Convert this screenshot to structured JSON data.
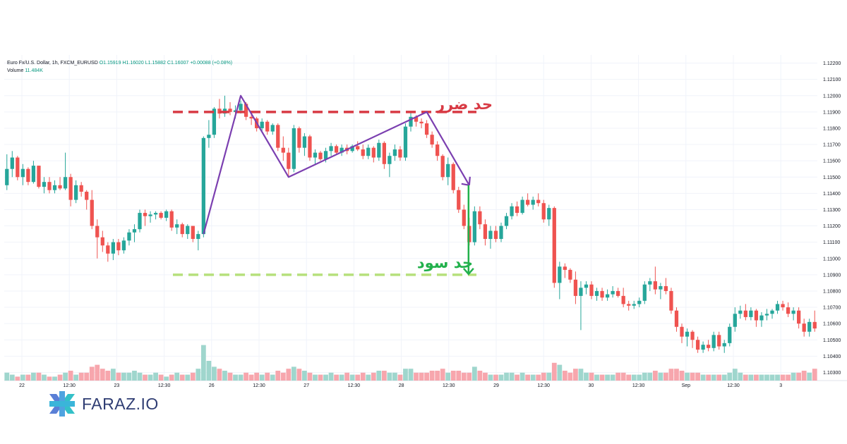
{
  "chart_data": {
    "type": "candlestick",
    "title": "Euro Fx/U.S. Dollar, 1h, FXCM_EURUSD",
    "legend_ohlc": {
      "open": "O1.15919",
      "high": "H1.16020",
      "low": "L1.15882",
      "close": "C1.16007",
      "change": "+0.00088 (+0.08%)"
    },
    "volume_label": "Volume",
    "volume_value": "11.484K",
    "y_ticks": [
      "1.12200",
      "1.12100",
      "1.12000",
      "1.11900",
      "1.11800",
      "1.11700",
      "1.11600",
      "1.11500",
      "1.11400",
      "1.11300",
      "1.11200",
      "1.11100",
      "1.11000",
      "1.10900",
      "1.10800",
      "1.10700",
      "1.10600",
      "1.10500",
      "1.10400",
      "1.10300"
    ],
    "y_range": [
      1.1025,
      1.1225
    ],
    "x_labels": [
      "22",
      "12:30",
      "23",
      "12:30",
      "26",
      "12:30",
      "27",
      "12:30",
      "28",
      "12:30",
      "29",
      "12:30",
      "30",
      "12:30",
      "Sep",
      "12:30",
      "3"
    ],
    "bars": [
      [
        1.1145,
        1.1164,
        1.1142,
        1.1155,
        4
      ],
      [
        1.1155,
        1.1166,
        1.115,
        1.1162,
        3
      ],
      [
        1.1162,
        1.1163,
        1.1148,
        1.115,
        2
      ],
      [
        1.115,
        1.1158,
        1.1145,
        1.1155,
        3
      ],
      [
        1.1155,
        1.1156,
        1.1145,
        1.1147,
        3
      ],
      [
        1.1147,
        1.116,
        1.1146,
        1.1157,
        4
      ],
      [
        1.1157,
        1.1157,
        1.1143,
        1.1144,
        4
      ],
      [
        1.1144,
        1.115,
        1.114,
        1.1147,
        3
      ],
      [
        1.1147,
        1.115,
        1.114,
        1.1142,
        2
      ],
      [
        1.1142,
        1.1148,
        1.114,
        1.1145,
        2
      ],
      [
        1.1145,
        1.115,
        1.1142,
        1.1143,
        3
      ],
      [
        1.1143,
        1.1165,
        1.1142,
        1.115,
        4
      ],
      [
        1.115,
        1.1152,
        1.1132,
        1.1136,
        5
      ],
      [
        1.1136,
        1.1148,
        1.1134,
        1.1145,
        3
      ],
      [
        1.1145,
        1.1147,
        1.1138,
        1.1141,
        4
      ],
      [
        1.1141,
        1.1142,
        1.113,
        1.1136,
        4
      ],
      [
        1.1136,
        1.1142,
        1.1118,
        1.112,
        7
      ],
      [
        1.112,
        1.1124,
        1.11,
        1.1113,
        8
      ],
      [
        1.1113,
        1.1117,
        1.1104,
        1.1108,
        6
      ],
      [
        1.1108,
        1.111,
        1.1098,
        1.1103,
        5
      ],
      [
        1.1103,
        1.1112,
        1.1099,
        1.111,
        6
      ],
      [
        1.111,
        1.1112,
        1.1102,
        1.1105,
        4
      ],
      [
        1.1105,
        1.1113,
        1.1103,
        1.1111,
        4
      ],
      [
        1.1111,
        1.1118,
        1.1108,
        1.1116,
        4
      ],
      [
        1.1116,
        1.1121,
        1.111,
        1.1118,
        5
      ],
      [
        1.1118,
        1.113,
        1.1116,
        1.1128,
        4
      ],
      [
        1.1128,
        1.113,
        1.112,
        1.1126,
        3
      ],
      [
        1.1126,
        1.1129,
        1.1122,
        1.1127,
        3
      ],
      [
        1.1127,
        1.1129,
        1.1124,
        1.1128,
        4
      ],
      [
        1.1128,
        1.1129,
        1.1124,
        1.1125,
        3
      ],
      [
        1.1125,
        1.113,
        1.1123,
        1.1129,
        2
      ],
      [
        1.1129,
        1.113,
        1.1117,
        1.1119,
        3
      ],
      [
        1.1119,
        1.1124,
        1.1115,
        1.1121,
        4
      ],
      [
        1.1121,
        1.1122,
        1.1113,
        1.1115,
        3
      ],
      [
        1.1115,
        1.1121,
        1.1112,
        1.112,
        3
      ],
      [
        1.112,
        1.112,
        1.111,
        1.1112,
        4
      ],
      [
        1.1112,
        1.1117,
        1.1105,
        1.1115,
        6
      ],
      [
        1.1115,
        1.1175,
        1.1113,
        1.1174,
        18
      ],
      [
        1.1174,
        1.1185,
        1.1168,
        1.1176,
        10
      ],
      [
        1.1176,
        1.1193,
        1.1174,
        1.1192,
        7
      ],
      [
        1.1192,
        1.1198,
        1.1186,
        1.1189,
        6
      ],
      [
        1.1189,
        1.12,
        1.1187,
        1.1192,
        5
      ],
      [
        1.1192,
        1.1196,
        1.1188,
        1.119,
        4
      ],
      [
        1.119,
        1.1194,
        1.1186,
        1.1191,
        3
      ],
      [
        1.1191,
        1.1197,
        1.1189,
        1.1195,
        3
      ],
      [
        1.1195,
        1.1196,
        1.1185,
        1.1187,
        4
      ],
      [
        1.1187,
        1.119,
        1.1182,
        1.1186,
        3
      ],
      [
        1.1186,
        1.1187,
        1.1178,
        1.118,
        4
      ],
      [
        1.118,
        1.1186,
        1.1178,
        1.1184,
        3
      ],
      [
        1.1184,
        1.1185,
        1.1176,
        1.1178,
        4
      ],
      [
        1.1178,
        1.1183,
        1.1176,
        1.1182,
        3
      ],
      [
        1.1182,
        1.1183,
        1.1166,
        1.1168,
        5
      ],
      [
        1.1168,
        1.1175,
        1.116,
        1.1165,
        4
      ],
      [
        1.1165,
        1.1168,
        1.115,
        1.1155,
        6
      ],
      [
        1.1155,
        1.1182,
        1.1153,
        1.118,
        7
      ],
      [
        1.118,
        1.1181,
        1.1165,
        1.1168,
        6
      ],
      [
        1.1168,
        1.1177,
        1.1163,
        1.1175,
        5
      ],
      [
        1.1175,
        1.1176,
        1.116,
        1.1162,
        4
      ],
      [
        1.1162,
        1.1167,
        1.1158,
        1.1165,
        3
      ],
      [
        1.1165,
        1.1166,
        1.116,
        1.1161,
        3
      ],
      [
        1.1161,
        1.1168,
        1.1159,
        1.1166,
        3
      ],
      [
        1.1166,
        1.1171,
        1.1163,
        1.1169,
        4
      ],
      [
        1.1169,
        1.117,
        1.1164,
        1.1165,
        3
      ],
      [
        1.1165,
        1.117,
        1.1163,
        1.1168,
        3
      ],
      [
        1.1168,
        1.117,
        1.1164,
        1.1166,
        4
      ],
      [
        1.1166,
        1.117,
        1.1165,
        1.1169,
        3
      ],
      [
        1.1169,
        1.1172,
        1.1166,
        1.1167,
        3
      ],
      [
        1.1167,
        1.117,
        1.1161,
        1.1163,
        4
      ],
      [
        1.1163,
        1.117,
        1.1161,
        1.1168,
        3
      ],
      [
        1.1168,
        1.1169,
        1.1159,
        1.1162,
        4
      ],
      [
        1.1162,
        1.1173,
        1.116,
        1.1171,
        5
      ],
      [
        1.1171,
        1.1172,
        1.1155,
        1.1158,
        5
      ],
      [
        1.1158,
        1.1165,
        1.115,
        1.1163,
        4
      ],
      [
        1.1163,
        1.117,
        1.116,
        1.1167,
        4
      ],
      [
        1.1167,
        1.1169,
        1.116,
        1.1162,
        3
      ],
      [
        1.1162,
        1.1183,
        1.116,
        1.1181,
        6
      ],
      [
        1.1181,
        1.119,
        1.1178,
        1.1187,
        6
      ],
      [
        1.1187,
        1.1188,
        1.1181,
        1.1184,
        4
      ],
      [
        1.1184,
        1.1186,
        1.118,
        1.1183,
        4
      ],
      [
        1.1183,
        1.1185,
        1.1174,
        1.1176,
        4
      ],
      [
        1.1176,
        1.1178,
        1.1168,
        1.117,
        5
      ],
      [
        1.117,
        1.1172,
        1.116,
        1.1163,
        5
      ],
      [
        1.1163,
        1.1164,
        1.1148,
        1.115,
        6
      ],
      [
        1.115,
        1.1162,
        1.1145,
        1.1158,
        4
      ],
      [
        1.1158,
        1.1159,
        1.114,
        1.1142,
        5
      ],
      [
        1.1142,
        1.1144,
        1.1128,
        1.113,
        5
      ],
      [
        1.113,
        1.1133,
        1.1118,
        1.112,
        4
      ],
      [
        1.112,
        1.1125,
        1.1108,
        1.111,
        4
      ],
      [
        1.111,
        1.1132,
        1.1108,
        1.1129,
        7
      ],
      [
        1.1129,
        1.1132,
        1.1118,
        1.1121,
        5
      ],
      [
        1.1121,
        1.1124,
        1.1108,
        1.1112,
        4
      ],
      [
        1.1112,
        1.112,
        1.1106,
        1.1117,
        3
      ],
      [
        1.1117,
        1.112,
        1.111,
        1.1112,
        3
      ],
      [
        1.1112,
        1.1122,
        1.111,
        1.112,
        3
      ],
      [
        1.112,
        1.1128,
        1.1118,
        1.1126,
        4
      ],
      [
        1.1126,
        1.1134,
        1.1124,
        1.1132,
        4
      ],
      [
        1.1132,
        1.1135,
        1.1126,
        1.1128,
        3
      ],
      [
        1.1128,
        1.1138,
        1.1127,
        1.1136,
        4
      ],
      [
        1.1136,
        1.114,
        1.1132,
        1.1133,
        3
      ],
      [
        1.1133,
        1.1138,
        1.113,
        1.1136,
        3
      ],
      [
        1.1136,
        1.114,
        1.1132,
        1.1134,
        3
      ],
      [
        1.1134,
        1.1136,
        1.1122,
        1.1124,
        4
      ],
      [
        1.1124,
        1.1133,
        1.112,
        1.1131,
        4
      ],
      [
        1.1131,
        1.1132,
        1.1082,
        1.1085,
        9
      ],
      [
        1.1085,
        1.1098,
        1.1075,
        1.1095,
        8
      ],
      [
        1.1095,
        1.1097,
        1.1088,
        1.1093,
        5
      ],
      [
        1.1093,
        1.1094,
        1.1085,
        1.1087,
        4
      ],
      [
        1.1087,
        1.1092,
        1.1072,
        1.1077,
        6
      ],
      [
        1.1077,
        1.1086,
        1.1056,
        1.1082,
        6
      ],
      [
        1.1082,
        1.1086,
        1.1078,
        1.1084,
        4
      ],
      [
        1.1084,
        1.1086,
        1.1075,
        1.1077,
        4
      ],
      [
        1.1077,
        1.1082,
        1.1074,
        1.108,
        3
      ],
      [
        1.108,
        1.1082,
        1.1074,
        1.1076,
        3
      ],
      [
        1.1076,
        1.1081,
        1.1074,
        1.1078,
        3
      ],
      [
        1.1078,
        1.1083,
        1.1076,
        1.108,
        3
      ],
      [
        1.108,
        1.1082,
        1.1076,
        1.1077,
        4
      ],
      [
        1.1077,
        1.1082,
        1.107,
        1.1072,
        4
      ],
      [
        1.1072,
        1.1074,
        1.1068,
        1.1071,
        3
      ],
      [
        1.1071,
        1.1074,
        1.1069,
        1.1072,
        3
      ],
      [
        1.1072,
        1.1076,
        1.107,
        1.1074,
        3
      ],
      [
        1.1074,
        1.1086,
        1.1072,
        1.1084,
        4
      ],
      [
        1.1084,
        1.1088,
        1.108,
        1.1086,
        4
      ],
      [
        1.1086,
        1.1095,
        1.1078,
        1.1081,
        5
      ],
      [
        1.1081,
        1.1085,
        1.1075,
        1.1083,
        4
      ],
      [
        1.1083,
        1.1088,
        1.1078,
        1.108,
        4
      ],
      [
        1.108,
        1.1082,
        1.1066,
        1.1068,
        6
      ],
      [
        1.1068,
        1.107,
        1.1055,
        1.1058,
        6
      ],
      [
        1.1058,
        1.106,
        1.1048,
        1.1052,
        5
      ],
      [
        1.1052,
        1.1057,
        1.1046,
        1.1055,
        4
      ],
      [
        1.1055,
        1.1056,
        1.1045,
        1.105,
        4
      ],
      [
        1.105,
        1.1052,
        1.1042,
        1.1044,
        4
      ],
      [
        1.1044,
        1.1049,
        1.1042,
        1.1047,
        3
      ],
      [
        1.1047,
        1.105,
        1.1043,
        1.1045,
        3
      ],
      [
        1.1045,
        1.1055,
        1.1043,
        1.1053,
        3
      ],
      [
        1.1053,
        1.1055,
        1.1044,
        1.1046,
        3
      ],
      [
        1.1046,
        1.105,
        1.1042,
        1.1048,
        3
      ],
      [
        1.1048,
        1.106,
        1.1046,
        1.1058,
        4
      ],
      [
        1.1058,
        1.107,
        1.1055,
        1.1066,
        6
      ],
      [
        1.1066,
        1.1071,
        1.1063,
        1.1068,
        4
      ],
      [
        1.1068,
        1.1072,
        1.1062,
        1.1064,
        3
      ],
      [
        1.1064,
        1.107,
        1.1062,
        1.1068,
        3
      ],
      [
        1.1068,
        1.1069,
        1.1058,
        1.1062,
        3
      ],
      [
        1.1062,
        1.1067,
        1.1058,
        1.1065,
        3
      ],
      [
        1.1065,
        1.1069,
        1.1062,
        1.1066,
        3
      ],
      [
        1.1066,
        1.1069,
        1.1063,
        1.1068,
        3
      ],
      [
        1.1068,
        1.1074,
        1.1066,
        1.1072,
        3
      ],
      [
        1.1072,
        1.1074,
        1.1068,
        1.107,
        3
      ],
      [
        1.107,
        1.1073,
        1.1064,
        1.1066,
        3
      ],
      [
        1.1066,
        1.107,
        1.1062,
        1.1068,
        4
      ],
      [
        1.1068,
        1.107,
        1.1057,
        1.106,
        4
      ],
      [
        1.106,
        1.1063,
        1.1052,
        1.1055,
        5
      ],
      [
        1.1055,
        1.1063,
        1.1052,
        1.1061,
        4
      ],
      [
        1.1061,
        1.1068,
        1.1055,
        1.1057,
        6
      ]
    ],
    "annotations": {
      "stop_loss_label": "حد ضرر",
      "take_profit_label": "حد سود",
      "stop_loss_level": 1.119,
      "take_profit_level": 1.109,
      "pattern_points": [
        [
          37,
          1.1115
        ],
        [
          44,
          1.12
        ],
        [
          53,
          1.115
        ],
        [
          79,
          1.119
        ],
        [
          87,
          1.1145
        ]
      ],
      "target_arrow": {
        "bar": 87,
        "from": 1.1145,
        "to": 1.109
      }
    },
    "colors": {
      "up": "#26a69a",
      "down": "#ef5350",
      "vol_up": "#9fd6cd",
      "vol_down": "#f7a6ad",
      "pattern": "#7b3fb0",
      "stop": "#d83a44",
      "target_line": "#b6e07c",
      "target_arrow": "#22b14c",
      "grid": "#f0f3fa"
    }
  },
  "brand": {
    "name": "FARAZ.IO"
  }
}
